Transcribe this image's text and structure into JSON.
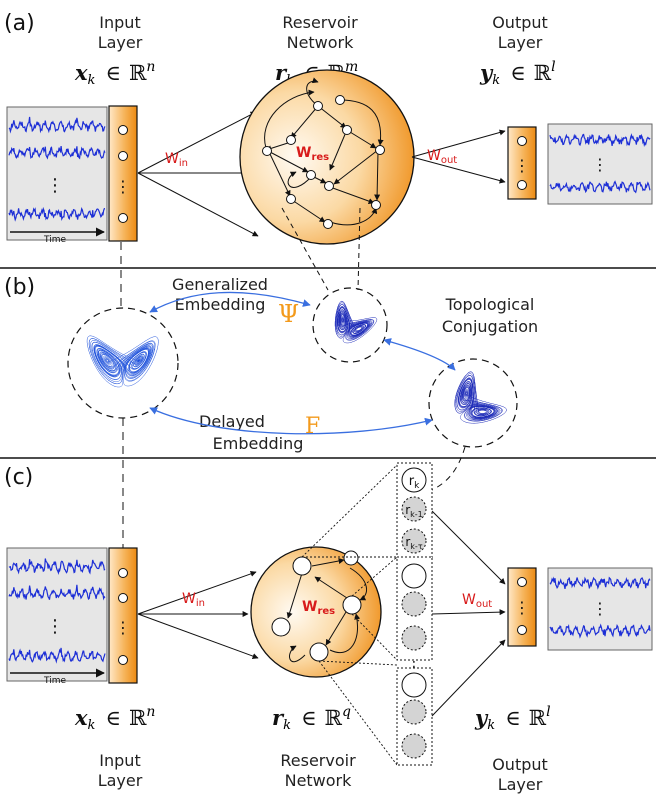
{
  "panels": {
    "a": "(a)",
    "b": "(b)",
    "c": "(c)"
  },
  "panel_a": {
    "input_title": [
      "Input",
      "Layer"
    ],
    "reservoir_title": [
      "Reservoir",
      "Network"
    ],
    "output_title": [
      "Output",
      "Layer"
    ],
    "input_math": {
      "var": "x",
      "sub": "k",
      "set": "ℝ",
      "sup": "n"
    },
    "reservoir_math": {
      "var": "r",
      "sub": "k",
      "set": "ℝ",
      "sup": "m"
    },
    "output_math": {
      "var": "y",
      "sub": "k",
      "set": "ℝ",
      "sup": "l"
    },
    "time_label": "Time",
    "w_in": {
      "main": "W",
      "sub": "in"
    },
    "w_res": {
      "main": "W",
      "sub": "res"
    },
    "w_out": {
      "main": "W",
      "sub": "out"
    }
  },
  "panel_b": {
    "generalized_embedding": [
      "Generalized",
      "Embedding"
    ],
    "psi": "Ψ",
    "topological_conjugation": [
      "Topological",
      "Conjugation"
    ],
    "delayed_embedding": [
      "Delayed",
      "Embedding"
    ],
    "f": "F"
  },
  "panel_c": {
    "time_label": "Time",
    "w_in": {
      "main": "W",
      "sub": "in"
    },
    "w_res": {
      "main": "W",
      "sub": "res"
    },
    "w_out": {
      "main": "W",
      "sub": "out"
    },
    "delay_nodes": [
      {
        "main": "r",
        "sub": "k"
      },
      {
        "main": "r",
        "sub": "k-1"
      },
      {
        "main": "r",
        "sub": "k-τ"
      }
    ],
    "input_math": {
      "var": "x",
      "sub": "k",
      "set": "ℝ",
      "sup": "n"
    },
    "reservoir_math": {
      "var": "r",
      "sub": "k",
      "set": "ℝ",
      "sup": "q"
    },
    "output_math": {
      "var": "y",
      "sub": "k",
      "set": "ℝ",
      "sup": "l"
    },
    "input_title": [
      "Input",
      "Layer"
    ],
    "reservoir_title": [
      "Reservoir",
      "Network"
    ],
    "output_title": [
      "Output",
      "Layer"
    ]
  },
  "colors": {
    "signal_blue": "#1d2fd6",
    "attractor_blue": "#2255dd",
    "arrow_blue": "#3a6fe0",
    "weight_red": "#d81b1b",
    "operator_orange": "#f39a1c",
    "orange_dark": "#ec8a12",
    "orange_light": "#fff3e2"
  }
}
